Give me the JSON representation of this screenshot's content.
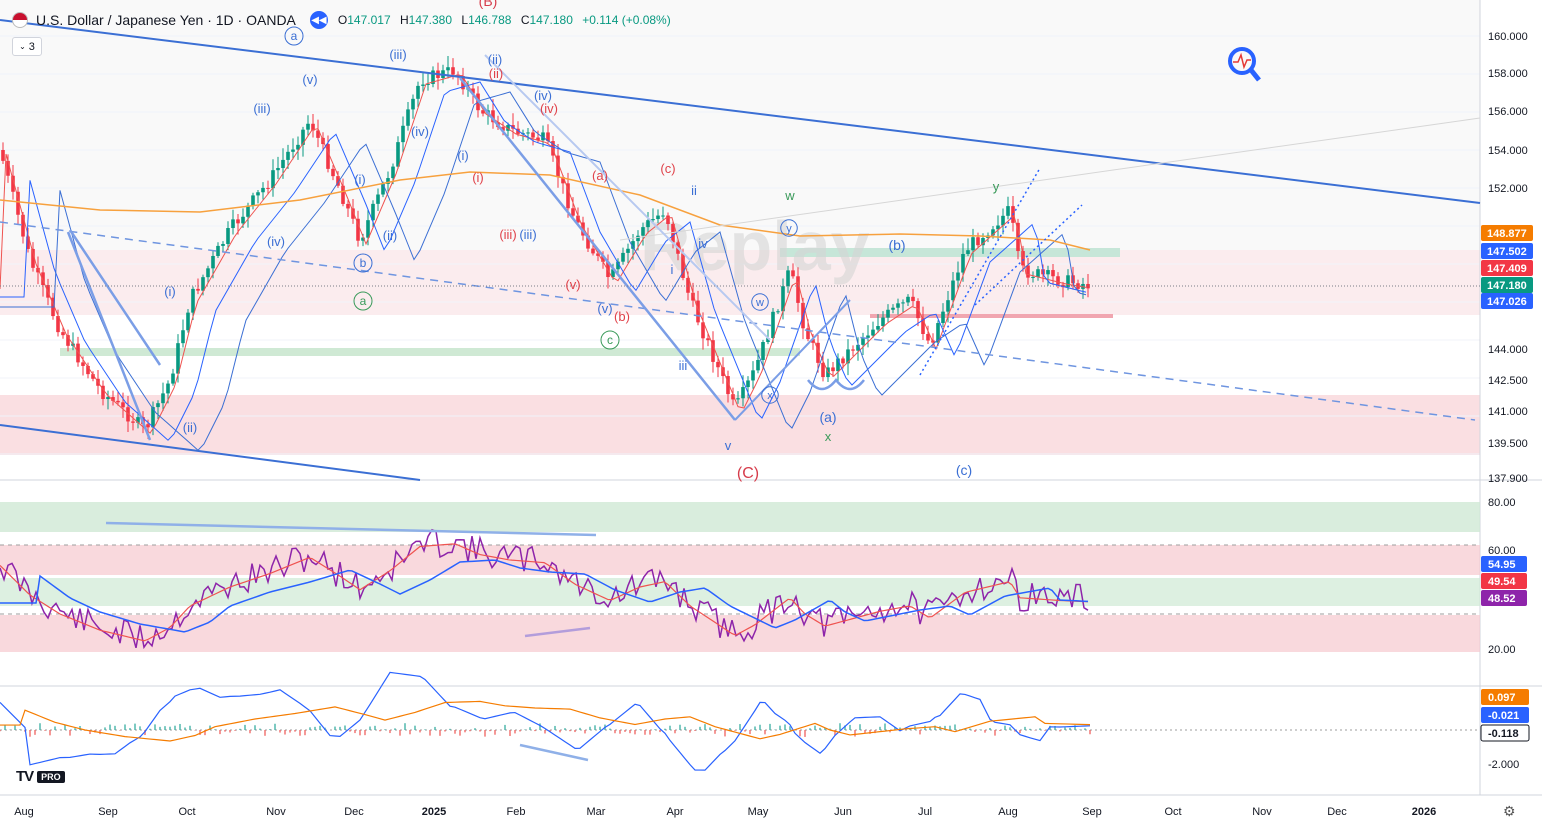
{
  "header": {
    "symbol": "U.S. Dollar / Japanese Yen · 1D · OANDA",
    "ohlc": [
      {
        "k": "O",
        "v": "147.017"
      },
      {
        "k": "H",
        "v": "147.380"
      },
      {
        "k": "L",
        "v": "146.788"
      },
      {
        "k": "C",
        "v": "147.180"
      }
    ],
    "change": "+0.114 (+0.08%)",
    "indicator_count": "3"
  },
  "watermark": "Replay",
  "logo_text": "PRO",
  "colors": {
    "up": "#089981",
    "down": "#f23645",
    "blue": "#2962ff",
    "trend": "#3b6fd4",
    "ma_orange": "#f7a13e",
    "rsi": "#8e24aa",
    "zone_red": "#f7c9ce",
    "zone_green": "#cfe9d4"
  },
  "price_axis": {
    "ticks": [
      "160.000",
      "158.000",
      "156.000",
      "154.000",
      "152.000",
      "144.000",
      "142.500",
      "141.000",
      "139.500",
      "137.900"
    ],
    "price_labels": [
      {
        "text": "148.877",
        "color": "#f57c00"
      },
      {
        "text": "147.502",
        "color": "#2962ff"
      },
      {
        "text": "147.409",
        "color": "#f23645"
      },
      {
        "text": "147.180",
        "color": "#089981"
      },
      {
        "text": "147.026",
        "color": "#2962ff"
      }
    ]
  },
  "rsi_axis": {
    "ticks": [
      "80.00",
      "60.00",
      "20.00"
    ],
    "labels": [
      {
        "text": "54.95",
        "color": "#2962ff"
      },
      {
        "text": "49.54",
        "color": "#f23645"
      },
      {
        "text": "48.52",
        "color": "#8e24aa"
      }
    ]
  },
  "macd_axis": {
    "ticks": [
      "-2.000"
    ],
    "labels": [
      {
        "text": "0.097",
        "color": "#f57c00"
      },
      {
        "text": "-0.021",
        "color": "#2962ff"
      },
      {
        "text": "-0.118",
        "color": "#131722"
      }
    ]
  },
  "time_axis": [
    "Aug",
    "Sep",
    "Oct",
    "Nov",
    "Dec",
    "2025",
    "Feb",
    "Mar",
    "Apr",
    "May",
    "Jun",
    "Jul",
    "Aug",
    "Sep",
    "Oct",
    "Nov",
    "Dec",
    "2026"
  ],
  "wave_labels": [
    {
      "text": "a",
      "circled": true
    },
    {
      "text": "(v)"
    },
    {
      "text": "(iii)"
    },
    {
      "text": "(iii)"
    },
    {
      "text": "(ii)"
    },
    {
      "text": "(ii)"
    },
    {
      "text": "(iv)"
    },
    {
      "text": "(iv)"
    },
    {
      "text": "(iv)"
    },
    {
      "text": "(i)"
    },
    {
      "text": "(i)"
    },
    {
      "text": "(i)"
    },
    {
      "text": "(ii)"
    },
    {
      "text": "(iv)"
    },
    {
      "text": "(i)"
    },
    {
      "text": "b",
      "circled": true
    },
    {
      "text": "a",
      "circled": true
    },
    {
      "text": "(ii)"
    },
    {
      "text": "(c)"
    },
    {
      "text": "(a)"
    },
    {
      "text": "(iii)"
    },
    {
      "text": "(iii)"
    },
    {
      "text": "(v)"
    },
    {
      "text": "(v)"
    },
    {
      "text": "(b)"
    },
    {
      "text": "c",
      "circled": true
    },
    {
      "text": "ii"
    },
    {
      "text": "iv"
    },
    {
      "text": "i"
    },
    {
      "text": "iii"
    },
    {
      "text": "v"
    },
    {
      "text": "(C)"
    },
    {
      "text": "w"
    },
    {
      "text": "y",
      "circled": true
    },
    {
      "text": "w",
      "circled": true
    },
    {
      "text": "x",
      "circled": true
    },
    {
      "text": "(a)"
    },
    {
      "text": "x"
    },
    {
      "text": "(b)"
    },
    {
      "text": "y"
    },
    {
      "text": "(c)"
    },
    {
      "text": "(B)"
    }
  ]
}
